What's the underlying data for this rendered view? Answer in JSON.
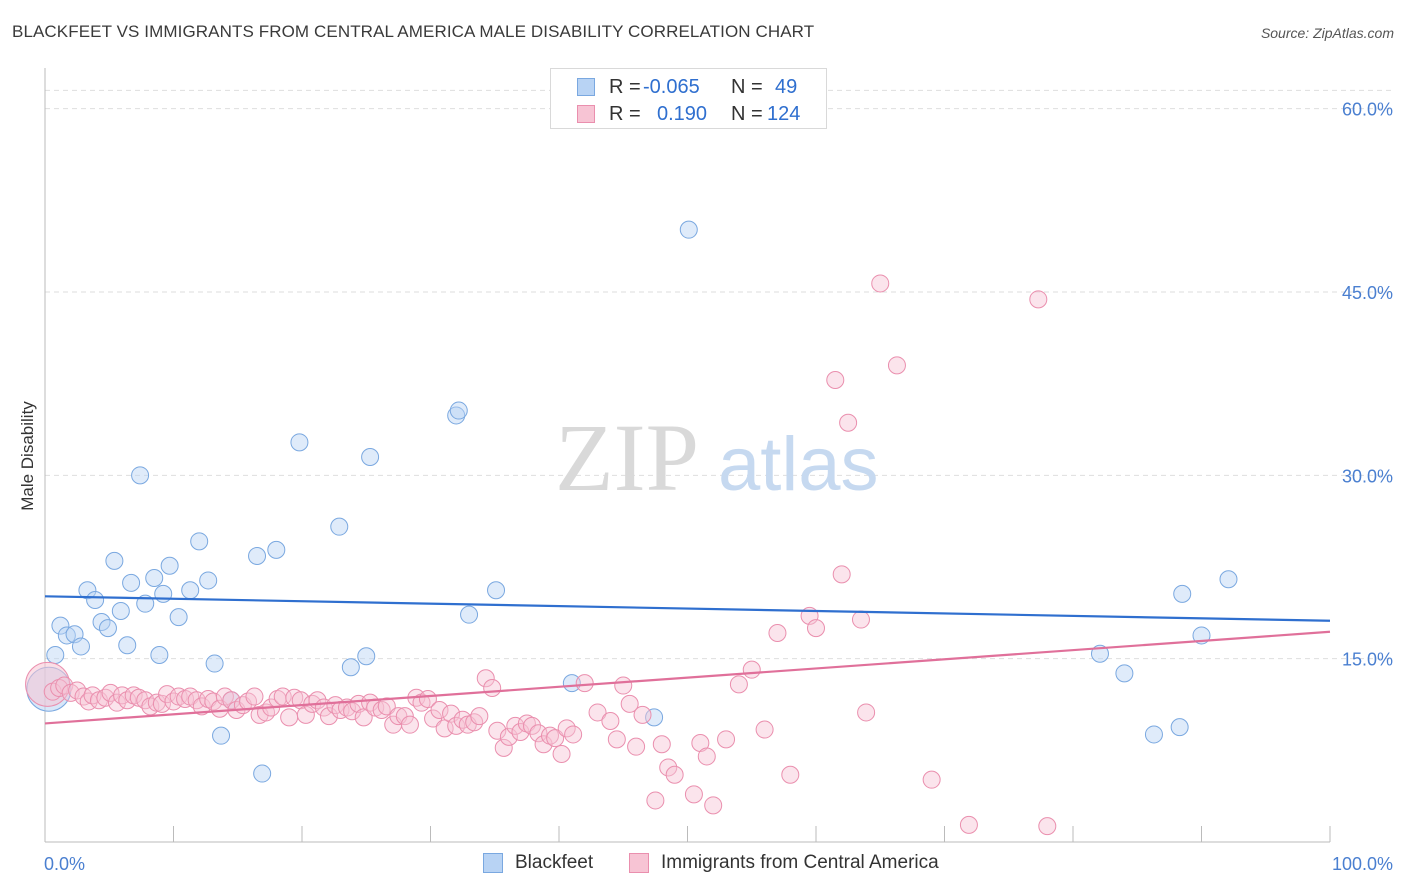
{
  "title": "BLACKFEET VS IMMIGRANTS FROM CENTRAL AMERICA MALE DISABILITY CORRELATION CHART",
  "source": "Source: ZipAtlas.com",
  "watermark": {
    "zip": "ZIP",
    "atlas": "atlas"
  },
  "legend_top": {
    "rows": [
      {
        "r_label": "R =",
        "r_value": "-0.065",
        "n_label": "N =",
        "n_value": "49"
      },
      {
        "r_label": "R =",
        "r_value": "0.190",
        "n_label": "N =",
        "n_value": "124"
      }
    ]
  },
  "colors": {
    "blue_fill": "#b8d3f4",
    "blue_stroke": "#7aa8e0",
    "blue_line": "#2f6fcf",
    "pink_fill": "#f7c4d4",
    "pink_stroke": "#ea8fae",
    "pink_line": "#e0709a",
    "axis_text": "#4a7fd0",
    "grid": "#dedede"
  },
  "chart_data": {
    "type": "scatter",
    "title": "BLACKFEET VS IMMIGRANTS FROM CENTRAL AMERICA MALE DISABILITY CORRELATION CHART",
    "xlabel": "",
    "ylabel": "Male Disability",
    "xlim": [
      0,
      100
    ],
    "ylim": [
      0,
      63
    ],
    "y_ticks": [
      15,
      30,
      45,
      60
    ],
    "y_tick_labels": [
      "15.0%",
      "30.0%",
      "45.0%",
      "60.0%"
    ],
    "x_tick_labels": [
      "0.0%",
      "100.0%"
    ],
    "grid": true,
    "legend": "bottom",
    "series": [
      {
        "name": "Blackfeet",
        "r": -0.065,
        "n": 49,
        "trend": {
          "x": [
            0,
            100
          ],
          "y": [
            20.1,
            18.1
          ]
        },
        "points": [
          [
            0.3,
            12.5,
            "large"
          ],
          [
            0.8,
            15.3
          ],
          [
            1.2,
            17.7
          ],
          [
            1.7,
            16.9
          ],
          [
            2.3,
            17.0
          ],
          [
            2.8,
            16.0
          ],
          [
            3.3,
            20.6
          ],
          [
            3.9,
            19.8
          ],
          [
            4.4,
            18.0
          ],
          [
            4.9,
            17.5
          ],
          [
            5.4,
            23.0
          ],
          [
            5.9,
            18.9
          ],
          [
            6.4,
            16.1
          ],
          [
            6.7,
            21.2
          ],
          [
            7.4,
            30.0
          ],
          [
            7.8,
            19.5
          ],
          [
            8.5,
            21.6
          ],
          [
            8.9,
            15.3
          ],
          [
            9.2,
            20.3
          ],
          [
            9.7,
            22.6
          ],
          [
            10.4,
            18.4
          ],
          [
            11.3,
            20.6
          ],
          [
            12.0,
            24.6
          ],
          [
            12.7,
            21.4
          ],
          [
            13.2,
            14.6
          ],
          [
            13.7,
            8.7
          ],
          [
            14.5,
            11.6
          ],
          [
            16.5,
            23.4
          ],
          [
            16.9,
            5.6
          ],
          [
            18.0,
            23.9
          ],
          [
            19.8,
            32.7
          ],
          [
            22.9,
            25.8
          ],
          [
            23.8,
            14.3
          ],
          [
            25.0,
            15.2
          ],
          [
            25.3,
            31.5
          ],
          [
            32.0,
            34.9
          ],
          [
            32.2,
            35.3
          ],
          [
            33.0,
            18.6
          ],
          [
            35.1,
            20.6
          ],
          [
            41.0,
            13.0
          ],
          [
            47.4,
            10.2
          ],
          [
            50.1,
            50.1
          ],
          [
            82.1,
            15.4
          ],
          [
            84.0,
            13.8
          ],
          [
            86.3,
            8.8
          ],
          [
            88.3,
            9.4
          ],
          [
            88.5,
            20.3
          ],
          [
            90.0,
            16.9
          ],
          [
            92.1,
            21.5
          ]
        ]
      },
      {
        "name": "Immigrants from Central America",
        "r": 0.19,
        "n": 124,
        "trend": {
          "x": [
            0,
            100
          ],
          "y": [
            9.7,
            17.2
          ]
        },
        "points": [
          [
            0.2,
            12.9,
            "large"
          ],
          [
            0.6,
            12.3
          ],
          [
            1.1,
            12.6
          ],
          [
            1.5,
            12.8
          ],
          [
            2.0,
            12.2
          ],
          [
            2.5,
            12.4
          ],
          [
            3.0,
            11.9
          ],
          [
            3.4,
            11.5
          ],
          [
            3.7,
            12.0
          ],
          [
            4.2,
            11.6
          ],
          [
            4.7,
            11.8
          ],
          [
            5.1,
            12.2
          ],
          [
            5.6,
            11.4
          ],
          [
            6.0,
            12.0
          ],
          [
            6.4,
            11.6
          ],
          [
            6.9,
            12.0
          ],
          [
            7.3,
            11.8
          ],
          [
            7.8,
            11.6
          ],
          [
            8.2,
            11.1
          ],
          [
            8.7,
            11.4
          ],
          [
            9.1,
            11.3
          ],
          [
            9.5,
            12.1
          ],
          [
            10.0,
            11.5
          ],
          [
            10.4,
            11.9
          ],
          [
            10.9,
            11.7
          ],
          [
            11.3,
            11.9
          ],
          [
            11.8,
            11.6
          ],
          [
            12.2,
            11.1
          ],
          [
            12.7,
            11.7
          ],
          [
            13.1,
            11.5
          ],
          [
            13.6,
            10.9
          ],
          [
            14.0,
            11.9
          ],
          [
            14.5,
            11.6
          ],
          [
            14.9,
            10.8
          ],
          [
            15.4,
            11.2
          ],
          [
            15.8,
            11.5
          ],
          [
            16.3,
            11.9
          ],
          [
            16.7,
            10.4
          ],
          [
            17.2,
            10.6
          ],
          [
            17.6,
            11.0
          ],
          [
            18.1,
            11.7
          ],
          [
            18.5,
            11.9
          ],
          [
            19.0,
            10.2
          ],
          [
            19.4,
            11.8
          ],
          [
            19.9,
            11.6
          ],
          [
            20.3,
            10.4
          ],
          [
            20.8,
            11.3
          ],
          [
            21.2,
            11.6
          ],
          [
            21.7,
            11.0
          ],
          [
            22.1,
            10.3
          ],
          [
            22.6,
            11.2
          ],
          [
            23.0,
            10.8
          ],
          [
            23.5,
            11.0
          ],
          [
            23.9,
            10.7
          ],
          [
            24.4,
            11.3
          ],
          [
            24.8,
            10.2
          ],
          [
            25.3,
            11.4
          ],
          [
            25.7,
            11.0
          ],
          [
            26.2,
            10.8
          ],
          [
            26.6,
            11.1
          ],
          [
            27.1,
            9.6
          ],
          [
            27.5,
            10.3
          ],
          [
            28.0,
            10.3
          ],
          [
            28.4,
            9.6
          ],
          [
            28.9,
            11.8
          ],
          [
            29.3,
            11.4
          ],
          [
            29.8,
            11.7
          ],
          [
            30.2,
            10.1
          ],
          [
            30.7,
            10.8
          ],
          [
            31.1,
            9.3
          ],
          [
            31.6,
            10.5
          ],
          [
            32.0,
            9.5
          ],
          [
            32.5,
            10.0
          ],
          [
            32.9,
            9.6
          ],
          [
            33.4,
            9.8
          ],
          [
            33.8,
            10.3
          ],
          [
            34.3,
            13.4
          ],
          [
            34.8,
            12.6
          ],
          [
            35.2,
            9.1
          ],
          [
            35.7,
            7.7
          ],
          [
            36.1,
            8.6
          ],
          [
            36.6,
            9.5
          ],
          [
            37.0,
            9.0
          ],
          [
            37.5,
            9.7
          ],
          [
            37.9,
            9.5
          ],
          [
            38.4,
            8.9
          ],
          [
            38.8,
            8.0
          ],
          [
            39.3,
            8.7
          ],
          [
            39.7,
            8.5
          ],
          [
            40.2,
            7.2
          ],
          [
            40.6,
            9.3
          ],
          [
            41.1,
            8.8
          ],
          [
            42.0,
            13.0
          ],
          [
            43.0,
            10.6
          ],
          [
            44.0,
            9.9
          ],
          [
            44.5,
            8.4
          ],
          [
            45.0,
            12.8
          ],
          [
            45.5,
            11.3
          ],
          [
            46.0,
            7.8
          ],
          [
            46.5,
            10.4
          ],
          [
            47.5,
            3.4
          ],
          [
            48.0,
            8.0
          ],
          [
            48.5,
            6.1
          ],
          [
            49.0,
            5.5
          ],
          [
            50.5,
            3.9
          ],
          [
            51.0,
            8.1
          ],
          [
            51.5,
            7.0
          ],
          [
            52.0,
            3.0
          ],
          [
            53.0,
            8.4
          ],
          [
            54.0,
            12.9
          ],
          [
            55.0,
            14.1
          ],
          [
            56.0,
            9.2
          ],
          [
            57.0,
            17.1
          ],
          [
            58.0,
            5.5
          ],
          [
            59.5,
            18.5
          ],
          [
            60.0,
            17.5
          ],
          [
            61.5,
            37.8
          ],
          [
            62.0,
            21.9
          ],
          [
            62.5,
            34.3
          ],
          [
            63.5,
            18.2
          ],
          [
            63.9,
            10.6
          ],
          [
            65.0,
            45.7
          ],
          [
            66.3,
            39.0
          ],
          [
            69.0,
            5.1
          ],
          [
            71.9,
            1.4
          ],
          [
            77.3,
            44.4
          ],
          [
            78.0,
            1.3
          ]
        ]
      }
    ]
  },
  "legend_bottom": [
    {
      "label": "Blackfeet"
    },
    {
      "label": "Immigrants from Central America"
    }
  ]
}
